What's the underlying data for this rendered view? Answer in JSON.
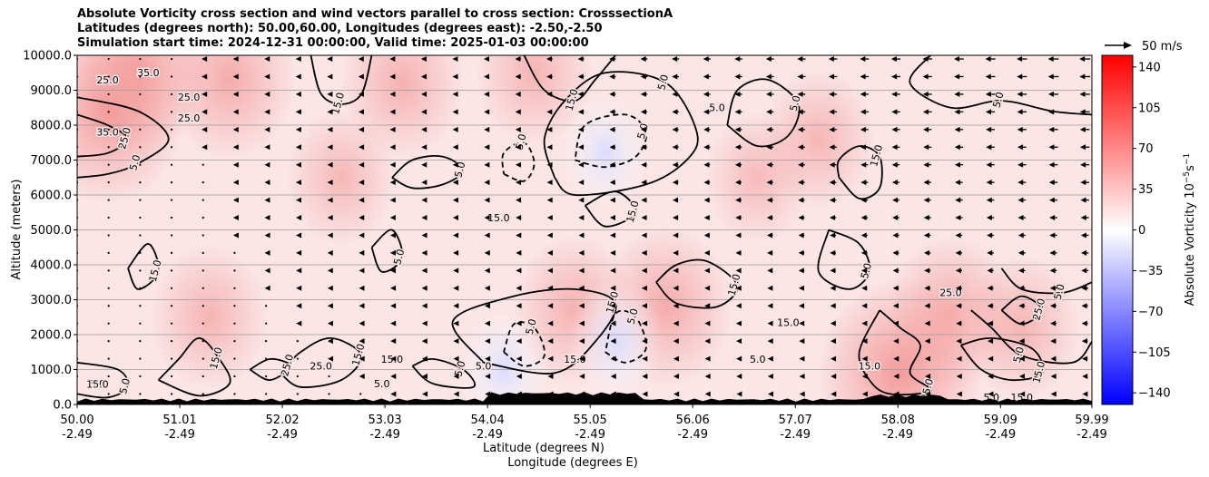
{
  "header": {
    "title_line1": "Absolute Vorticity cross section and wind vectors parallel to cross section: CrosssectionA",
    "title_line2": "Latitudes (degrees north): 50.00,60.00, Longitudes (degrees east): -2.50,-2.50",
    "title_line3": "Simulation start time: 2024-12-31 00:00:00, Valid time: 2025-01-03 00:00:00"
  },
  "quiver_key": {
    "label": "50 m/s"
  },
  "chart_data": {
    "type": "heatmap",
    "title": "Absolute Vorticity cross section and wind vectors parallel to cross section: CrosssectionA",
    "ylabel": "Altitude (meters)",
    "xlabel_line1": "Latitude (degrees N)",
    "xlabel_line2": "Longitude (degrees E)",
    "ylim": [
      0,
      10000
    ],
    "xlim": [
      50.0,
      59.99
    ],
    "y_ticks": [
      "0.0",
      "1000.0",
      "2000.0",
      "3000.0",
      "4000.0",
      "5000.0",
      "6000.0",
      "7000.0",
      "8000.0",
      "9000.0",
      "10000.0"
    ],
    "y_values": [
      0,
      1000,
      2000,
      3000,
      4000,
      5000,
      6000,
      7000,
      8000,
      9000,
      10000
    ],
    "x_ticks": [
      {
        "lat": "50.00",
        "lon": "-2.49",
        "v": 50.0
      },
      {
        "lat": "51.01",
        "lon": "-2.49",
        "v": 51.01
      },
      {
        "lat": "52.02",
        "lon": "-2.49",
        "v": 52.02
      },
      {
        "lat": "53.03",
        "lon": "-2.49",
        "v": 53.03
      },
      {
        "lat": "54.04",
        "lon": "-2.49",
        "v": 54.04
      },
      {
        "lat": "55.05",
        "lon": "-2.49",
        "v": 55.05
      },
      {
        "lat": "56.06",
        "lon": "-2.49",
        "v": 56.06
      },
      {
        "lat": "57.07",
        "lon": "-2.49",
        "v": 57.07
      },
      {
        "lat": "58.08",
        "lon": "-2.49",
        "v": 58.08
      },
      {
        "lat": "59.09",
        "lon": "-2.49",
        "v": 59.09
      },
      {
        "lat": "59.99",
        "lon": "-2.49",
        "v": 59.99
      }
    ],
    "colorbar": {
      "label": "Absolute Vorticity 10",
      "label_exp": "−5",
      "label_tail": "s",
      "label_exp2": "−1",
      "range": [
        -150,
        150
      ],
      "ticks": [
        {
          "text": "140",
          "v": 140
        },
        {
          "text": "105",
          "v": 105
        },
        {
          "text": "70",
          "v": 70
        },
        {
          "text": "35",
          "v": 35
        },
        {
          "text": "0",
          "v": 0
        },
        {
          "text": "−35",
          "v": -35
        },
        {
          "text": "−70",
          "v": -70
        },
        {
          "text": "−105",
          "v": -105
        },
        {
          "text": "−140",
          "v": -140
        }
      ],
      "colors": [
        "#0000ff",
        "#ffffff",
        "#ff0000"
      ]
    },
    "field_patches": [
      {
        "lat": 50.3,
        "alt": 8300,
        "val": 40
      },
      {
        "lat": 50.6,
        "alt": 9600,
        "val": 35
      },
      {
        "lat": 51.5,
        "alt": 9300,
        "val": 30
      },
      {
        "lat": 51.3,
        "alt": 2500,
        "val": 22
      },
      {
        "lat": 52.6,
        "alt": 6500,
        "val": 18
      },
      {
        "lat": 53.2,
        "alt": 9200,
        "val": 25
      },
      {
        "lat": 54.5,
        "alt": 9500,
        "val": 22
      },
      {
        "lat": 55.2,
        "alt": 7200,
        "val": -8
      },
      {
        "lat": 54.9,
        "alt": 2700,
        "val": 25
      },
      {
        "lat": 55.8,
        "alt": 2800,
        "val": 30
      },
      {
        "lat": 56.7,
        "alt": 6500,
        "val": 16
      },
      {
        "lat": 57.3,
        "alt": 7600,
        "val": 20
      },
      {
        "lat": 58.1,
        "alt": 900,
        "val": 45
      },
      {
        "lat": 58.6,
        "alt": 2600,
        "val": 28
      },
      {
        "lat": 59.3,
        "alt": 2200,
        "val": 22
      },
      {
        "lat": 54.2,
        "alt": 1000,
        "val": -10
      },
      {
        "lat": 55.3,
        "alt": 1800,
        "val": -12
      }
    ],
    "contours": [
      {
        "label": "5.0",
        "style": "solid",
        "points": [
          [
            50.0,
            8800
          ],
          [
            50.6,
            8400
          ],
          [
            50.9,
            7600
          ],
          [
            50.6,
            6900
          ],
          [
            50.3,
            6600
          ],
          [
            50.0,
            6500
          ]
        ]
      },
      {
        "label": "25.0",
        "style": "solid",
        "points": [
          [
            50.0,
            8300
          ],
          [
            50.3,
            8000
          ],
          [
            50.5,
            7600
          ],
          [
            50.3,
            7200
          ],
          [
            50.0,
            7100
          ]
        ]
      },
      {
        "label": "15.0",
        "style": "solid",
        "points": [
          [
            52.3,
            10000
          ],
          [
            52.4,
            8900
          ],
          [
            52.6,
            8600
          ],
          [
            52.8,
            8900
          ],
          [
            52.9,
            10000
          ]
        ]
      },
      {
        "label": "5.0",
        "style": "solid",
        "points": [
          [
            53.1,
            6500
          ],
          [
            53.3,
            6200
          ],
          [
            53.6,
            6300
          ],
          [
            53.8,
            6700
          ],
          [
            53.6,
            7100
          ],
          [
            53.3,
            7000
          ],
          [
            53.1,
            6500
          ]
        ]
      },
      {
        "label": "5.0",
        "style": "dashed",
        "points": [
          [
            54.2,
            6600
          ],
          [
            54.4,
            6400
          ],
          [
            54.5,
            6900
          ],
          [
            54.4,
            7500
          ],
          [
            54.2,
            7200
          ],
          [
            54.2,
            6600
          ]
        ]
      },
      {
        "label": "5.0",
        "style": "dashed",
        "points": [
          [
            54.9,
            7000
          ],
          [
            55.2,
            6800
          ],
          [
            55.5,
            7100
          ],
          [
            55.6,
            7800
          ],
          [
            55.4,
            8300
          ],
          [
            55.0,
            8000
          ],
          [
            54.9,
            7000
          ]
        ]
      },
      {
        "label": "5.0",
        "style": "solid",
        "points": [
          [
            54.7,
            6500
          ],
          [
            54.9,
            6000
          ],
          [
            55.6,
            6300
          ],
          [
            56.0,
            7000
          ],
          [
            56.1,
            7800
          ],
          [
            55.8,
            9200
          ],
          [
            55.2,
            9500
          ],
          [
            54.8,
            8700
          ],
          [
            54.6,
            7600
          ],
          [
            54.7,
            6500
          ]
        ]
      },
      {
        "label": "15.0",
        "style": "solid",
        "points": [
          [
            54.4,
            10000
          ],
          [
            54.6,
            9000
          ],
          [
            54.9,
            8700
          ],
          [
            55.1,
            9300
          ],
          [
            55.3,
            10000
          ]
        ]
      },
      {
        "label": "5.0",
        "style": "solid",
        "points": [
          [
            56.4,
            8000
          ],
          [
            56.7,
            7400
          ],
          [
            57.0,
            7700
          ],
          [
            57.1,
            8600
          ],
          [
            56.8,
            9300
          ],
          [
            56.5,
            9000
          ],
          [
            56.4,
            8000
          ]
        ]
      },
      {
        "label": "15.0",
        "style": "solid",
        "points": [
          [
            57.5,
            6500
          ],
          [
            57.7,
            5900
          ],
          [
            57.9,
            6200
          ],
          [
            57.9,
            7100
          ],
          [
            57.7,
            7400
          ],
          [
            57.5,
            7000
          ],
          [
            57.5,
            6500
          ]
        ]
      },
      {
        "label": "5.0",
        "style": "solid",
        "points": [
          [
            58.4,
            10000
          ],
          [
            58.2,
            9200
          ],
          [
            58.6,
            8500
          ],
          [
            59.1,
            8700
          ],
          [
            59.6,
            8400
          ],
          [
            59.99,
            8300
          ]
        ]
      },
      {
        "label": "5.0",
        "style": "solid",
        "points": [
          [
            57.4,
            5000
          ],
          [
            57.3,
            3800
          ],
          [
            57.6,
            3300
          ],
          [
            57.8,
            3800
          ],
          [
            57.7,
            4600
          ],
          [
            57.4,
            5000
          ]
        ]
      },
      {
        "label": "5.0",
        "style": "dashed",
        "points": [
          [
            54.2,
            1500
          ],
          [
            54.4,
            1100
          ],
          [
            54.6,
            1400
          ],
          [
            54.5,
            2200
          ],
          [
            54.3,
            2300
          ],
          [
            54.2,
            1500
          ]
        ]
      },
      {
        "label": "5.0",
        "style": "dashed",
        "points": [
          [
            55.2,
            1500
          ],
          [
            55.4,
            1200
          ],
          [
            55.6,
            1600
          ],
          [
            55.5,
            2500
          ],
          [
            55.3,
            2600
          ],
          [
            55.2,
            1500
          ]
        ]
      },
      {
        "label": "15.0",
        "style": "solid",
        "points": [
          [
            54.0,
            1200
          ],
          [
            53.7,
            2400
          ],
          [
            54.3,
            3100
          ],
          [
            54.9,
            3300
          ],
          [
            55.3,
            2900
          ],
          [
            55.1,
            1800
          ],
          [
            54.7,
            900
          ],
          [
            54.0,
            1200
          ]
        ]
      },
      {
        "label": "15.0",
        "style": "solid",
        "points": [
          [
            55.7,
            3500
          ],
          [
            55.9,
            2900
          ],
          [
            56.3,
            2800
          ],
          [
            56.5,
            3400
          ],
          [
            56.2,
            4100
          ],
          [
            55.9,
            4000
          ],
          [
            55.7,
            3500
          ]
        ]
      },
      {
        "label": "25.0",
        "style": "solid",
        "points": [
          [
            57.9,
            2700
          ],
          [
            58.1,
            2200
          ],
          [
            58.3,
            1700
          ],
          [
            58.2,
            900
          ],
          [
            58.4,
            400
          ],
          [
            58.0,
            300
          ],
          [
            57.8,
            700
          ],
          [
            57.7,
            1500
          ],
          [
            57.9,
            2700
          ]
        ]
      },
      {
        "label": "5.0",
        "style": "solid",
        "points": [
          [
            59.1,
            3900
          ],
          [
            59.3,
            3300
          ],
          [
            59.7,
            3200
          ],
          [
            59.99,
            3500
          ]
        ]
      },
      {
        "label": "5.0",
        "style": "solid",
        "points": [
          [
            58.8,
            2700
          ],
          [
            59.0,
            2200
          ],
          [
            59.3,
            1400
          ],
          [
            59.8,
            1200
          ],
          [
            59.99,
            1800
          ]
        ]
      },
      {
        "label": "15.0",
        "style": "solid",
        "points": [
          [
            58.7,
            1700
          ],
          [
            58.9,
            1000
          ],
          [
            59.2,
            700
          ],
          [
            59.5,
            900
          ],
          [
            59.4,
            1600
          ],
          [
            59.0,
            1900
          ],
          [
            58.7,
            1700
          ]
        ]
      },
      {
        "label": "5.0",
        "style": "solid",
        "points": [
          [
            50.0,
            1200
          ],
          [
            50.4,
            1000
          ],
          [
            50.5,
            500
          ],
          [
            50.3,
            200
          ],
          [
            50.0,
            300
          ]
        ]
      },
      {
        "label": "15.0",
        "style": "solid",
        "points": [
          [
            50.8,
            700
          ],
          [
            51.0,
            1300
          ],
          [
            51.2,
            1900
          ],
          [
            51.4,
            1300
          ],
          [
            51.5,
            600
          ],
          [
            51.2,
            250
          ],
          [
            50.8,
            700
          ]
        ]
      },
      {
        "label": "15.0",
        "style": "solid",
        "points": [
          [
            52.0,
            900
          ],
          [
            52.2,
            1500
          ],
          [
            52.5,
            1900
          ],
          [
            52.8,
            1400
          ],
          [
            52.6,
            700
          ],
          [
            52.2,
            500
          ],
          [
            52.0,
            900
          ]
        ]
      },
      {
        "label": "5.0",
        "style": "solid",
        "points": [
          [
            53.3,
            1100
          ],
          [
            53.5,
            600
          ],
          [
            53.9,
            500
          ],
          [
            53.8,
            1000
          ],
          [
            53.5,
            1300
          ],
          [
            53.3,
            1100
          ]
        ]
      },
      {
        "label": "25.0",
        "style": "solid",
        "points": [
          [
            51.7,
            1000
          ],
          [
            51.9,
            700
          ],
          [
            52.1,
            1100
          ],
          [
            51.9,
            1300
          ],
          [
            51.7,
            1000
          ]
        ]
      },
      {
        "label": "15.0",
        "style": "solid",
        "points": [
          [
            50.5,
            3900
          ],
          [
            50.6,
            3300
          ],
          [
            50.8,
            3800
          ],
          [
            50.7,
            4600
          ],
          [
            50.5,
            3900
          ]
        ]
      },
      {
        "label": "5.0",
        "style": "solid",
        "points": [
          [
            52.9,
            4500
          ],
          [
            53.0,
            3800
          ],
          [
            53.2,
            4200
          ],
          [
            53.1,
            5000
          ],
          [
            52.9,
            4500
          ]
        ]
      },
      {
        "label": "15.0",
        "style": "solid",
        "points": [
          [
            55.0,
            5700
          ],
          [
            55.2,
            5100
          ],
          [
            55.5,
            5500
          ],
          [
            55.3,
            6100
          ],
          [
            55.0,
            5700
          ]
        ]
      },
      {
        "label": "25.0",
        "style": "solid",
        "points": [
          [
            59.1,
            2700
          ],
          [
            59.3,
            2300
          ],
          [
            59.5,
            2700
          ],
          [
            59.3,
            3100
          ],
          [
            59.1,
            2700
          ]
        ]
      }
    ],
    "inline_labels": [
      {
        "text": "25.0",
        "lat": 51.1,
        "alt": 8700
      },
      {
        "text": "25.0",
        "lat": 51.1,
        "alt": 8100
      },
      {
        "text": "35.0",
        "lat": 50.3,
        "alt": 7700
      },
      {
        "text": "25.0",
        "lat": 50.3,
        "alt": 9200
      },
      {
        "text": "35.0",
        "lat": 50.7,
        "alt": 9400
      },
      {
        "text": "15.0",
        "lat": 54.15,
        "alt": 5250
      },
      {
        "text": "15.0",
        "lat": 57.0,
        "alt": 2250
      },
      {
        "text": "25.0",
        "lat": 58.6,
        "alt": 3100
      },
      {
        "text": "15.0",
        "lat": 53.1,
        "alt": 1200
      },
      {
        "text": "5.0",
        "lat": 50.2,
        "alt": 500
      },
      {
        "text": "15.0",
        "lat": 50.2,
        "alt": 480
      },
      {
        "text": "5.0",
        "lat": 53.0,
        "alt": 500
      },
      {
        "text": "25.0",
        "lat": 52.4,
        "alt": 1000
      },
      {
        "text": "5.0",
        "lat": 54.0,
        "alt": 1000
      },
      {
        "text": "15.0",
        "lat": 54.9,
        "alt": 1200
      },
      {
        "text": "5.0",
        "lat": 56.7,
        "alt": 1200
      },
      {
        "text": "5.0",
        "lat": 59.0,
        "alt": 100
      },
      {
        "text": "5.0",
        "lat": 56.3,
        "alt": 8400
      },
      {
        "text": "15.0",
        "lat": 57.8,
        "alt": 1000
      },
      {
        "text": "15.0",
        "lat": 59.3,
        "alt": 100
      }
    ]
  }
}
